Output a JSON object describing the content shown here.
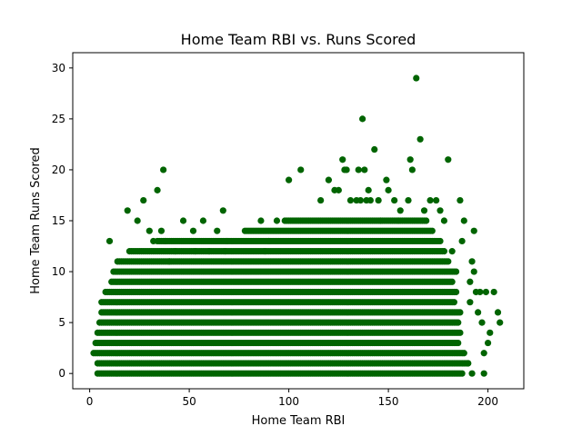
{
  "chart_data": {
    "type": "scatter",
    "title": "Home Team RBI vs. Runs Scored",
    "xlabel": "Home Team RBI",
    "ylabel": "Home Team Runs Scored",
    "xlim": [
      -8.5,
      218
    ],
    "ylim": [
      -1.5,
      31.5
    ],
    "xticks": [
      0,
      50,
      100,
      150,
      200
    ],
    "yticks": [
      0,
      5,
      10,
      15,
      20,
      25,
      30
    ],
    "grid": false,
    "legend": "none",
    "marker_color": "#006400",
    "series": [
      {
        "bands": [
          {
            "y": 0,
            "x_start": 4,
            "x_end": 187
          },
          {
            "y": 1,
            "x_start": 4,
            "x_end": 190
          },
          {
            "y": 2,
            "x_start": 2,
            "x_end": 188
          },
          {
            "y": 3,
            "x_start": 3,
            "x_end": 185
          },
          {
            "y": 4,
            "x_start": 4,
            "x_end": 186
          },
          {
            "y": 5,
            "x_start": 5,
            "x_end": 185
          },
          {
            "y": 6,
            "x_start": 6,
            "x_end": 186
          },
          {
            "y": 7,
            "x_start": 6,
            "x_end": 183
          },
          {
            "y": 8,
            "x_start": 8,
            "x_end": 184
          },
          {
            "y": 9,
            "x_start": 11,
            "x_end": 182
          },
          {
            "y": 10,
            "x_start": 12,
            "x_end": 184
          },
          {
            "y": 11,
            "x_start": 14,
            "x_end": 180
          },
          {
            "y": 12,
            "x_start": 20,
            "x_end": 178
          },
          {
            "y": 13,
            "x_start": 34,
            "x_end": 176
          },
          {
            "y": 14,
            "x_start": 78,
            "x_end": 172
          },
          {
            "y": 15,
            "x_start": 98,
            "x_end": 169
          }
        ],
        "points": [
          [
            10,
            13
          ],
          [
            19,
            16
          ],
          [
            24,
            15
          ],
          [
            27,
            17
          ],
          [
            30,
            14
          ],
          [
            32,
            13
          ],
          [
            34,
            18
          ],
          [
            36,
            14
          ],
          [
            37,
            20
          ],
          [
            38,
            13
          ],
          [
            40,
            11
          ],
          [
            43,
            12
          ],
          [
            47,
            15
          ],
          [
            52,
            14
          ],
          [
            53,
            12
          ],
          [
            57,
            15
          ],
          [
            60,
            12
          ],
          [
            64,
            14
          ],
          [
            67,
            16
          ],
          [
            68,
            12
          ],
          [
            69,
            13
          ],
          [
            86,
            15
          ],
          [
            88,
            12
          ],
          [
            90,
            13
          ],
          [
            94,
            15
          ],
          [
            100,
            19
          ],
          [
            106,
            20
          ],
          [
            116,
            17
          ],
          [
            120,
            19
          ],
          [
            123,
            18
          ],
          [
            125,
            18
          ],
          [
            127,
            21
          ],
          [
            128,
            20
          ],
          [
            129,
            20
          ],
          [
            131,
            17
          ],
          [
            134,
            17
          ],
          [
            135,
            20
          ],
          [
            136,
            17
          ],
          [
            137,
            25
          ],
          [
            138,
            20
          ],
          [
            139,
            17
          ],
          [
            140,
            18
          ],
          [
            141,
            17
          ],
          [
            143,
            22
          ],
          [
            145,
            17
          ],
          [
            146,
            15
          ],
          [
            149,
            19
          ],
          [
            150,
            18
          ],
          [
            153,
            17
          ],
          [
            155,
            15
          ],
          [
            156,
            16
          ],
          [
            160,
            17
          ],
          [
            161,
            21
          ],
          [
            162,
            20
          ],
          [
            164,
            29
          ],
          [
            166,
            23
          ],
          [
            168,
            16
          ],
          [
            171,
            17
          ],
          [
            174,
            17
          ],
          [
            176,
            16
          ],
          [
            178,
            15
          ],
          [
            180,
            21
          ],
          [
            182,
            12
          ],
          [
            186,
            17
          ],
          [
            187,
            13
          ],
          [
            188,
            15
          ],
          [
            191,
            7
          ],
          [
            191,
            9
          ],
          [
            192,
            11
          ],
          [
            193,
            14
          ],
          [
            193,
            10
          ],
          [
            194,
            8
          ],
          [
            195,
            6
          ],
          [
            196,
            8
          ],
          [
            197,
            5
          ],
          [
            198,
            2
          ],
          [
            198,
            0
          ],
          [
            199,
            8
          ],
          [
            200,
            3
          ],
          [
            201,
            4
          ],
          [
            203,
            8
          ],
          [
            205,
            6
          ],
          [
            206,
            5
          ],
          [
            190,
            1
          ],
          [
            192,
            0
          ]
        ]
      }
    ]
  }
}
